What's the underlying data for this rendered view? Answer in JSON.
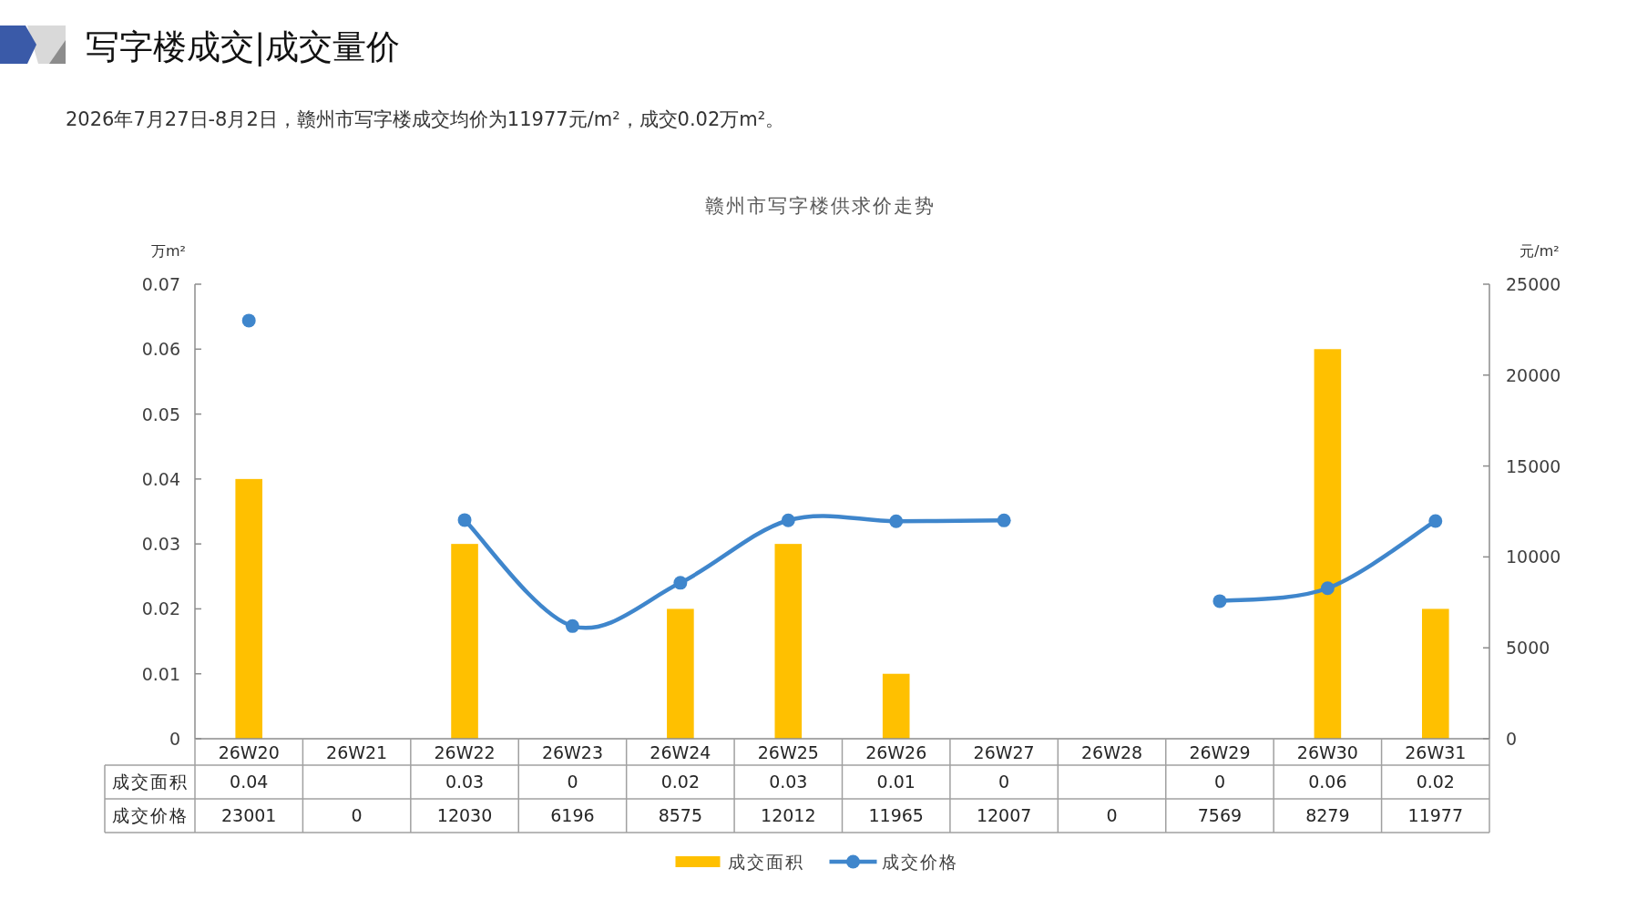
{
  "chart_data": {
    "type": "bar",
    "title": "写字楼成交|成交量价",
    "subtitle": "2026年7月27日-8月2日，赣州市写字楼成交均价为11977元/m²，成交0.02万m²。",
    "annotations": [
      "赣州市写字楼供求价走势"
    ],
    "ylabel": "万m²",
    "y2label": "元/m²",
    "categories": [
      "26W20",
      "26W21",
      "26W22",
      "26W23",
      "26W24",
      "26W25",
      "26W26",
      "26W27",
      "26W28",
      "26W29",
      "26W30",
      "26W31"
    ],
    "series": [
      {
        "name": "成交面积",
        "color": "#ffc000",
        "values": [
          0.04,
          null,
          0.03,
          0,
          0.02,
          0.03,
          0.01,
          0,
          null,
          0,
          0.06,
          0.02
        ],
        "value_labels": [
          "0.04",
          null,
          "0.03",
          "0",
          "0.02",
          "0.03",
          "0.01",
          "0",
          null,
          "0",
          "0.06",
          "0.02"
        ]
      },
      {
        "name": "成交价格",
        "type": "line",
        "axis": "y2",
        "color": "#3f86cc",
        "values": [
          23001,
          null,
          12030,
          6196,
          8575,
          12012,
          11965,
          12007,
          null,
          7569,
          8279,
          11977
        ],
        "value_labels": [
          "23001",
          "0",
          "12030",
          "6196",
          "8575",
          "12012",
          "11965",
          "12007",
          "0",
          "7569",
          "8279",
          "11977"
        ]
      }
    ],
    "ylim": [
      0,
      0.07
    ],
    "yticks": [
      0,
      0.01,
      0.02,
      0.03,
      0.04,
      0.05,
      0.06,
      0.07
    ],
    "y2lim": [
      0,
      25000
    ],
    "y2ticks": [
      0,
      5000,
      10000,
      15000,
      20000,
      25000
    ],
    "marker": "circle",
    "legend": "bottom"
  }
}
